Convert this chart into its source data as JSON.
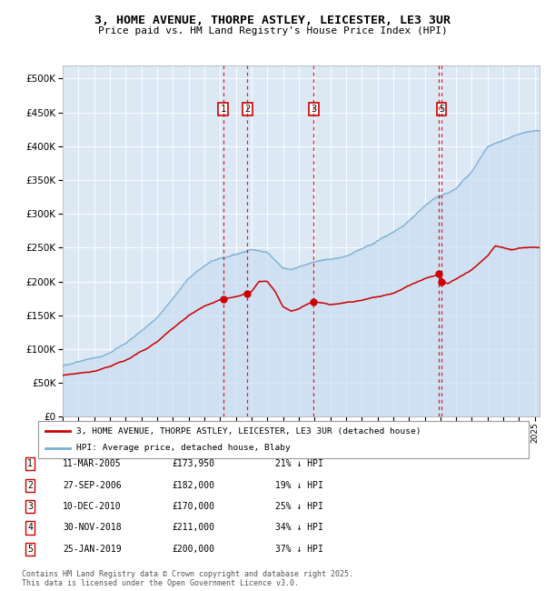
{
  "title1": "3, HOME AVENUE, THORPE ASTLEY, LEICESTER, LE3 3UR",
  "title2": "Price paid vs. HM Land Registry's House Price Index (HPI)",
  "bg_color": "#dce9f5",
  "hpi_color": "#7bafd4",
  "hpi_fill": "#c5daf0",
  "price_color": "#cc0000",
  "vline_color": "#cc0000",
  "ylim": [
    0,
    520000
  ],
  "yticks": [
    0,
    50000,
    100000,
    150000,
    200000,
    250000,
    300000,
    350000,
    400000,
    450000,
    500000
  ],
  "xlim_start": 1995,
  "xlim_end": 2025.3,
  "legend_line1": "3, HOME AVENUE, THORPE ASTLEY, LEICESTER, LE3 3UR (detached house)",
  "legend_line2": "HPI: Average price, detached house, Blaby",
  "transactions": [
    {
      "num": 1,
      "date": "11-MAR-2005",
      "price": "£173,950",
      "pct": "21%",
      "year": 2005.19,
      "price_val": 173950
    },
    {
      "num": 2,
      "date": "27-SEP-2006",
      "price": "£182,000",
      "pct": "19%",
      "year": 2006.74,
      "price_val": 182000
    },
    {
      "num": 3,
      "date": "10-DEC-2010",
      "price": "£170,000",
      "pct": "25%",
      "year": 2010.94,
      "price_val": 170000
    },
    {
      "num": 4,
      "date": "30-NOV-2018",
      "price": "£211,000",
      "pct": "34%",
      "year": 2018.91,
      "price_val": 211000
    },
    {
      "num": 5,
      "date": "25-JAN-2019",
      "price": "£200,000",
      "pct": "37%",
      "year": 2019.07,
      "price_val": 200000
    }
  ],
  "footer1": "Contains HM Land Registry data © Crown copyright and database right 2025.",
  "footer2": "This data is licensed under the Open Government Licence v3.0.",
  "show_num_labels": [
    1,
    2,
    3,
    5
  ]
}
